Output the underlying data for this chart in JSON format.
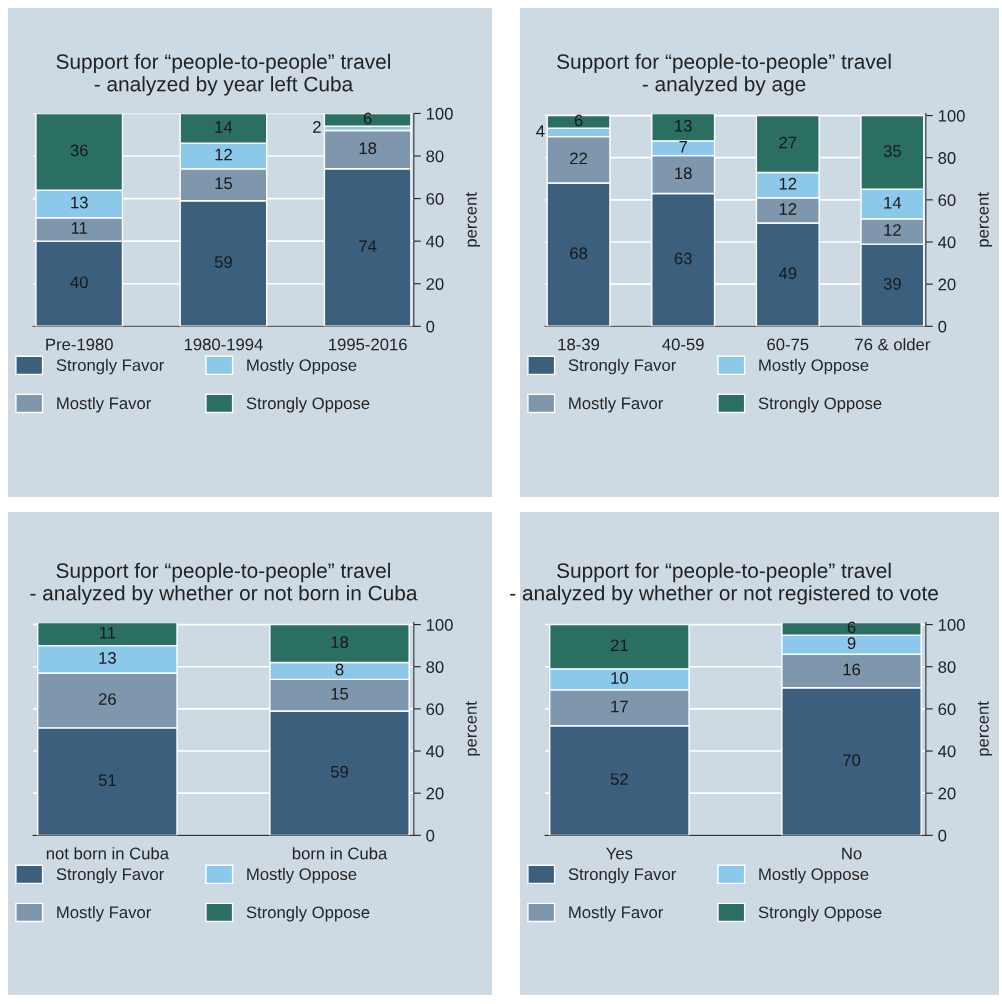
{
  "chart_data": [
    {
      "type": "bar",
      "title": "Support for “people-to-people” travel",
      "subtitle": "- analyzed by year left Cuba",
      "ylabel": "percent",
      "categories": [
        "Pre-1980",
        "1980-1994",
        "1995-2016"
      ],
      "stacked": true,
      "data_labels": true,
      "ylim": [
        0,
        100
      ],
      "yticks": [
        0,
        20,
        40,
        60,
        80,
        100
      ],
      "grid": "y",
      "legend": "bottom",
      "series": [
        {
          "name": "Strongly Favor",
          "color": "#3b5f7c",
          "values": [
            40,
            59,
            74
          ]
        },
        {
          "name": "Mostly Favor",
          "color": "#7f97ad",
          "values": [
            11,
            15,
            18
          ]
        },
        {
          "name": "Mostly Oppose",
          "color": "#8cc8ea",
          "values": [
            13,
            12,
            2
          ]
        },
        {
          "name": "Strongly Oppose",
          "color": "#2b6f62",
          "values": [
            36,
            14,
            6
          ]
        }
      ]
    },
    {
      "type": "bar",
      "title": "Support for “people-to-people” travel",
      "subtitle": "- analyzed by age",
      "ylabel": "percent",
      "categories": [
        "18-39",
        "40-59",
        "60-75",
        "76 & older"
      ],
      "stacked": true,
      "data_labels": true,
      "ylim": [
        0,
        101
      ],
      "yticks": [
        0,
        20,
        40,
        60,
        80,
        100
      ],
      "grid": "y",
      "legend": "bottom",
      "series": [
        {
          "name": "Strongly Favor",
          "color": "#3b5f7c",
          "values": [
            68,
            63,
            49,
            39
          ]
        },
        {
          "name": "Mostly Favor",
          "color": "#7f97ad",
          "values": [
            22,
            18,
            12,
            12
          ]
        },
        {
          "name": "Mostly Oppose",
          "color": "#8cc8ea",
          "values": [
            4,
            7,
            12,
            14
          ]
        },
        {
          "name": "Strongly Oppose",
          "color": "#2b6f62",
          "values": [
            6,
            13,
            27,
            35
          ]
        }
      ]
    },
    {
      "type": "bar",
      "title": "Support for “people-to-people” travel",
      "subtitle": "- analyzed by whether or not born in Cuba",
      "ylabel": "percent",
      "categories": [
        "not born in Cuba",
        "born in Cuba"
      ],
      "stacked": true,
      "data_labels": true,
      "ylim": [
        0,
        101
      ],
      "yticks": [
        0,
        20,
        40,
        60,
        80,
        100
      ],
      "grid": "y",
      "legend": "bottom",
      "series": [
        {
          "name": "Strongly Favor",
          "color": "#3b5f7c",
          "values": [
            51,
            59
          ]
        },
        {
          "name": "Mostly Favor",
          "color": "#7f97ad",
          "values": [
            26,
            15
          ]
        },
        {
          "name": "Mostly Oppose",
          "color": "#8cc8ea",
          "values": [
            13,
            8
          ]
        },
        {
          "name": "Strongly Oppose",
          "color": "#2b6f62",
          "values": [
            11,
            18
          ]
        }
      ]
    },
    {
      "type": "bar",
      "title": "Support for “people-to-people” travel",
      "subtitle": "- analyzed by whether or not registered to vote",
      "ylabel": "percent",
      "categories": [
        "Yes",
        "No"
      ],
      "stacked": true,
      "data_labels": true,
      "ylim": [
        0,
        101
      ],
      "yticks": [
        0,
        20,
        40,
        60,
        80,
        100
      ],
      "grid": "y",
      "legend": "bottom",
      "series": [
        {
          "name": "Strongly Favor",
          "color": "#3b5f7c",
          "values": [
            52,
            70
          ]
        },
        {
          "name": "Mostly Favor",
          "color": "#7f97ad",
          "values": [
            17,
            16
          ]
        },
        {
          "name": "Mostly Oppose",
          "color": "#8cc8ea",
          "values": [
            10,
            9
          ]
        },
        {
          "name": "Strongly Oppose",
          "color": "#2b6f62",
          "values": [
            21,
            6
          ]
        }
      ]
    }
  ]
}
